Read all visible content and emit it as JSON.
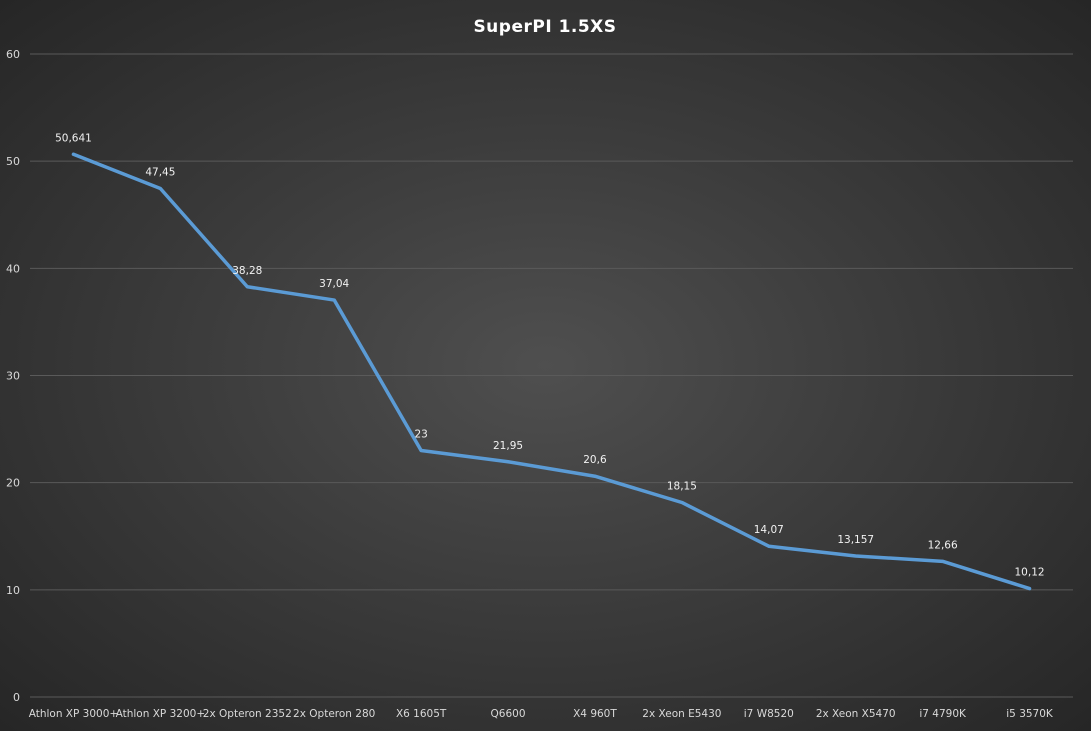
{
  "chart_data": {
    "type": "line",
    "title": "SuperPI  1.5XS",
    "xlabel": "",
    "ylabel": "",
    "ylim": [
      0,
      60
    ],
    "yticks": [
      0,
      10,
      20,
      30,
      40,
      50,
      60
    ],
    "grid": true,
    "legend": "none",
    "categories": [
      "Athlon XP 3000+",
      "Athlon XP 3200+",
      "2x Opteron 2352",
      "2x Opteron 280",
      "X6 1605T",
      "Q6600",
      "X4 960T",
      "2x Xeon E5430",
      "i7 W8520",
      "2x Xeon X5470",
      "i7 4790K",
      "i5 3570K"
    ],
    "series": [
      {
        "values": [
          50.641,
          47.45,
          38.28,
          37.04,
          23,
          21.95,
          20.6,
          18.15,
          14.07,
          13.157,
          12.66,
          10.12
        ],
        "labels": [
          "50,641",
          "47,45",
          "38,28",
          "37,04",
          "23",
          "21,95",
          "20,6",
          "18,15",
          "14,07",
          "13,157",
          "12,66",
          "10,12"
        ],
        "color": "#5b9bd5"
      }
    ]
  }
}
